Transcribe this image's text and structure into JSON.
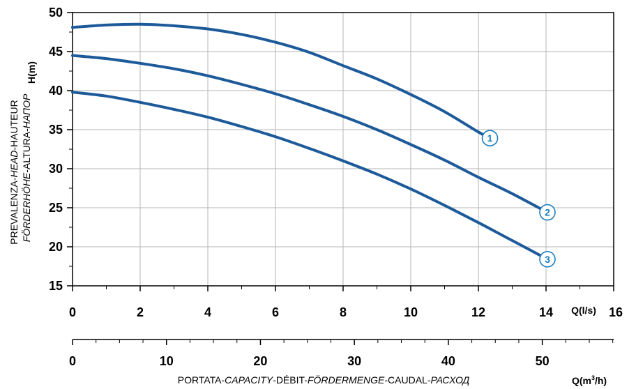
{
  "chart_data": {
    "type": "line",
    "x_unit": "Q(l/s)",
    "x2_unit_base": "Q(m",
    "x2_unit_sup": "3",
    "x2_unit_end": "/h)",
    "y_unit": "H(m)",
    "y_title_line1_parts": [
      "PREVALENZA-",
      "HEAD",
      "-HAUTEUR"
    ],
    "y_title_line2_parts": [
      "FÖRDERHÖHE",
      "-ALTURA-",
      "НАПОР"
    ],
    "x_title_parts": [
      "PORTATA-",
      "CAPACITY",
      "-DÉBIT-",
      "FÖRDERMENGE",
      "-CAUDAL-",
      "РАСХОД"
    ],
    "xlim": [
      0,
      16
    ],
    "ylim": [
      15,
      50
    ],
    "x_ticks": [
      "0",
      "2",
      "4",
      "6",
      "8",
      "10",
      "12",
      "14",
      "16"
    ],
    "y_ticks": [
      "15",
      "20",
      "25",
      "30",
      "35",
      "40",
      "45",
      "50"
    ],
    "x2_ticks": [
      "0",
      "10",
      "20",
      "30",
      "40",
      "50"
    ],
    "grid": true,
    "line_color": "#1d5a9a",
    "label_color": "#1a7dc0",
    "series": [
      {
        "name": "1",
        "x": [
          0,
          1,
          2,
          3,
          4,
          5,
          6,
          7,
          8,
          9,
          10,
          11,
          12,
          12.3
        ],
        "y": [
          48.1,
          48.4,
          48.5,
          48.3,
          47.9,
          47.2,
          46.2,
          44.9,
          43.2,
          41.5,
          39.5,
          37.3,
          34.7,
          34.0
        ]
      },
      {
        "name": "2",
        "x": [
          0,
          1,
          2,
          3,
          4,
          5,
          6,
          7,
          8,
          9,
          10,
          11,
          12,
          13,
          14
        ],
        "y": [
          44.5,
          44.1,
          43.5,
          42.8,
          41.9,
          40.8,
          39.6,
          38.2,
          36.7,
          35.0,
          33.1,
          31.1,
          28.9,
          26.8,
          24.5
        ]
      },
      {
        "name": "3",
        "x": [
          0,
          1,
          2,
          3,
          4,
          5,
          6,
          7,
          8,
          9,
          10,
          11,
          12,
          13,
          14
        ],
        "y": [
          39.8,
          39.3,
          38.5,
          37.6,
          36.6,
          35.4,
          34.1,
          32.6,
          31.0,
          29.3,
          27.4,
          25.3,
          23.1,
          20.8,
          18.5
        ]
      }
    ]
  }
}
